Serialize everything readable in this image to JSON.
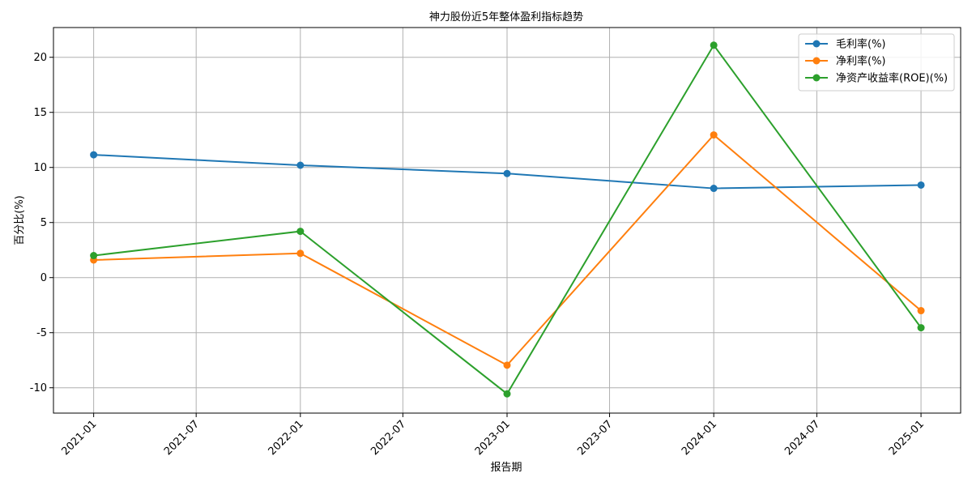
{
  "chart_data": {
    "type": "line",
    "title": "神力股份近5年整体盈利指标趋势",
    "xlabel": "报告期",
    "ylabel": "百分比(%)",
    "x": [
      "2021-01-01",
      "2022-01-01",
      "2023-01-01",
      "2024-01-01",
      "2025-01-01"
    ],
    "x_ticks": [
      "2021-01",
      "2021-07",
      "2022-01",
      "2022-07",
      "2023-01",
      "2023-07",
      "2024-01",
      "2024-07",
      "2025-01"
    ],
    "y_ticks": [
      -10,
      -5,
      0,
      5,
      10,
      15,
      20
    ],
    "ylim": [
      -12.3,
      22.7
    ],
    "grid": true,
    "legend_position": "top-right",
    "series": [
      {
        "name": "毛利率(%)",
        "color": "#1f77b4",
        "values": [
          11.15,
          10.2,
          9.45,
          8.1,
          8.4
        ]
      },
      {
        "name": "净利率(%)",
        "color": "#ff7f0e",
        "values": [
          1.6,
          2.2,
          -7.95,
          12.95,
          -3.0
        ]
      },
      {
        "name": "净资产收益率(ROE)(%)",
        "color": "#2ca02c",
        "values": [
          2.0,
          4.2,
          -10.55,
          21.1,
          -4.55
        ]
      }
    ]
  }
}
